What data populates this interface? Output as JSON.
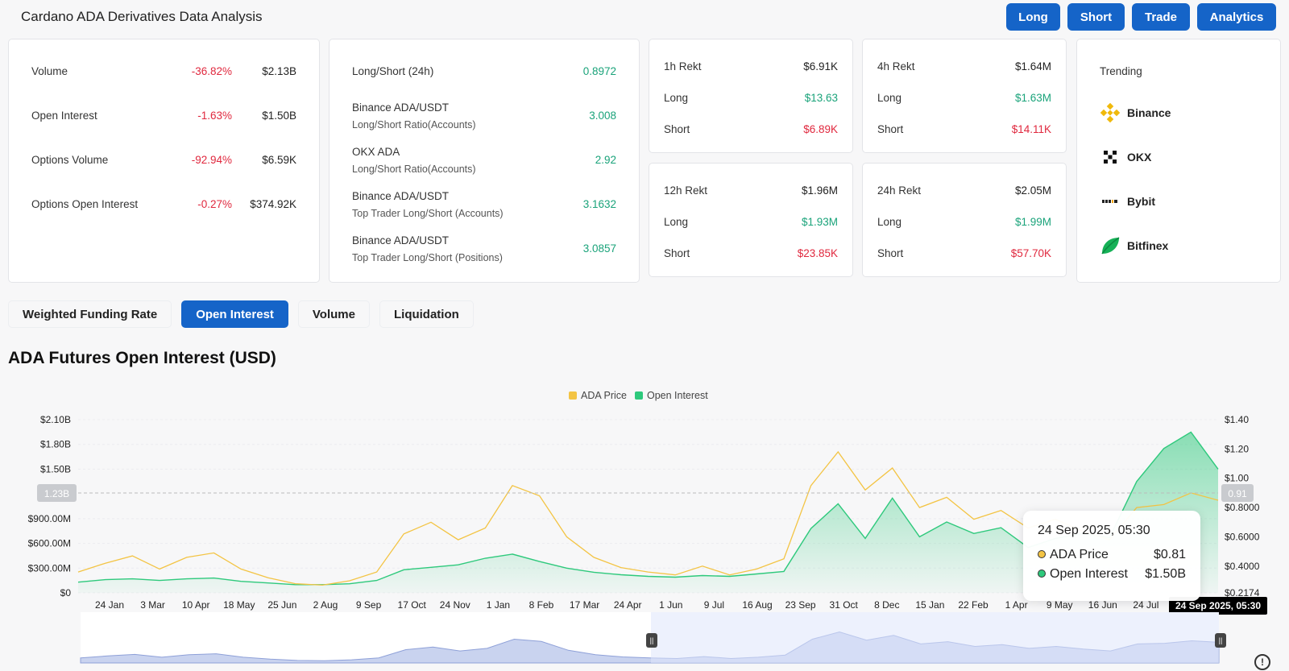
{
  "header": {
    "title": "Cardano ADA Derivatives Data Analysis",
    "buttons": [
      "Long",
      "Short",
      "Trade",
      "Analytics"
    ]
  },
  "overview": [
    {
      "label": "Volume",
      "change": "-36.82%",
      "value": "$2.13B"
    },
    {
      "label": "Open Interest",
      "change": "-1.63%",
      "value": "$1.50B"
    },
    {
      "label": "Options Volume",
      "change": "-92.94%",
      "value": "$6.59K"
    },
    {
      "label": "Options Open Interest",
      "change": "-0.27%",
      "value": "$374.92K"
    }
  ],
  "ratios": [
    {
      "label": "Long/Short (24h)",
      "sub": "",
      "value": "0.8972"
    },
    {
      "label": "Binance ADA/USDT",
      "sub": "Long/Short Ratio(Accounts)",
      "value": "3.008"
    },
    {
      "label": "OKX ADA",
      "sub": "Long/Short Ratio(Accounts)",
      "value": "2.92"
    },
    {
      "label": "Binance ADA/USDT",
      "sub": "Top Trader Long/Short (Accounts)",
      "value": "3.1632"
    },
    {
      "label": "Binance ADA/USDT",
      "sub": "Top Trader Long/Short (Positions)",
      "value": "3.0857"
    }
  ],
  "rekt": [
    {
      "label": "1h Rekt",
      "total": "$6.91K",
      "long_label": "Long",
      "long": "$13.63",
      "short_label": "Short",
      "short": "$6.89K"
    },
    {
      "label": "4h Rekt",
      "total": "$1.64M",
      "long_label": "Long",
      "long": "$1.63M",
      "short_label": "Short",
      "short": "$14.11K"
    },
    {
      "label": "12h Rekt",
      "total": "$1.96M",
      "long_label": "Long",
      "long": "$1.93M",
      "short_label": "Short",
      "short": "$23.85K"
    },
    {
      "label": "24h Rekt",
      "total": "$2.05M",
      "long_label": "Long",
      "long": "$1.99M",
      "short_label": "Short",
      "short": "$57.70K"
    }
  ],
  "trending": {
    "title": "Trending",
    "items": [
      {
        "name": "Binance",
        "icon": "binance-logo-icon"
      },
      {
        "name": "OKX",
        "icon": "okx-logo-icon"
      },
      {
        "name": "Bybit",
        "icon": "bybit-logo-icon"
      },
      {
        "name": "Bitfinex",
        "icon": "bitfinex-logo-icon"
      }
    ]
  },
  "tabs": [
    {
      "label": "Weighted Funding Rate",
      "active": false
    },
    {
      "label": "Open Interest",
      "active": true
    },
    {
      "label": "Volume",
      "active": false
    },
    {
      "label": "Liquidation",
      "active": false
    }
  ],
  "chart_title": "ADA Futures Open Interest (USD)",
  "colors": {
    "accent": "#1564c8",
    "negative": "#e0283e",
    "positive": "#1aa37a",
    "price": "#f3c444",
    "oi": "#2ec97c"
  },
  "chart_data": {
    "type": "area",
    "legend": [
      "ADA Price",
      "Open Interest"
    ],
    "legend_position": "top-center",
    "x_ticks": [
      "24 Jan",
      "3 Mar",
      "10 Apr",
      "18 May",
      "25 Jun",
      "2 Aug",
      "9 Sep",
      "17 Oct",
      "24 Nov",
      "1 Jan",
      "8 Feb",
      "17 Mar",
      "24 Apr",
      "1 Jun",
      "9 Jul",
      "16 Aug",
      "23 Sep",
      "31 Oct",
      "8 Dec",
      "15 Jan",
      "22 Feb",
      "1 Apr",
      "9 May",
      "16 Jun",
      "24 Jul"
    ],
    "y_left_ticks": [
      "$2.10B",
      "$1.80B",
      "$1.50B",
      "$900.00M",
      "$600.00M",
      "$300.00M",
      "$0"
    ],
    "y_left_range": [
      0,
      2.1
    ],
    "y_right_ticks": [
      "$1.40",
      "$1.20",
      "$1.00",
      "$0.8000",
      "$0.6000",
      "$0.4000",
      "$0.2174"
    ],
    "y_right_range": [
      0.2174,
      1.4
    ],
    "crosshair": {
      "left_value": "1.23B",
      "right_value": "0.91",
      "x_label": "24 Sep 2025, 05:30"
    },
    "series": [
      {
        "name": "ADA Price",
        "axis": "right",
        "values": [
          0.36,
          0.42,
          0.47,
          0.38,
          0.46,
          0.49,
          0.38,
          0.32,
          0.28,
          0.27,
          0.3,
          0.36,
          0.62,
          0.7,
          0.58,
          0.66,
          0.95,
          0.88,
          0.6,
          0.46,
          0.39,
          0.36,
          0.34,
          0.4,
          0.34,
          0.38,
          0.45,
          0.95,
          1.18,
          0.92,
          1.07,
          0.8,
          0.87,
          0.72,
          0.78,
          0.66,
          0.72,
          0.64,
          0.58,
          0.8,
          0.82,
          0.9,
          0.85
        ]
      },
      {
        "name": "Open Interest",
        "axis": "left",
        "values": [
          0.13,
          0.16,
          0.17,
          0.15,
          0.17,
          0.18,
          0.14,
          0.12,
          0.1,
          0.1,
          0.11,
          0.15,
          0.28,
          0.31,
          0.34,
          0.42,
          0.47,
          0.38,
          0.3,
          0.25,
          0.22,
          0.2,
          0.19,
          0.21,
          0.2,
          0.23,
          0.26,
          0.78,
          1.08,
          0.66,
          1.15,
          0.68,
          0.86,
          0.72,
          0.79,
          0.55,
          0.66,
          0.72,
          0.67,
          1.35,
          1.75,
          1.95,
          1.5
        ]
      }
    ]
  },
  "tooltip": {
    "time": "24 Sep 2025, 05:30",
    "rows": [
      {
        "name": "ADA Price",
        "value": "$0.81"
      },
      {
        "name": "Open Interest",
        "value": "$1.50B"
      }
    ]
  }
}
